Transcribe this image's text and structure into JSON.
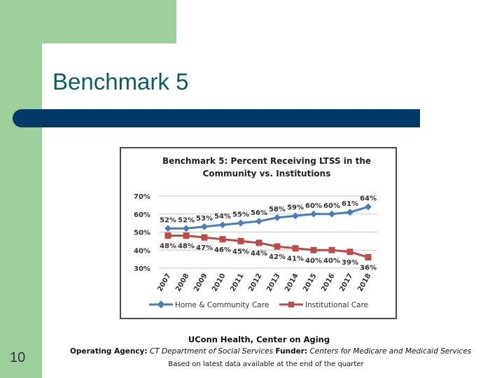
{
  "slide": {
    "title": "Benchmark 5",
    "number": "10"
  },
  "colors": {
    "green": "#9ccf9c",
    "title_bar": "#003a66",
    "home": "#4a7ebb",
    "inst": "#be4b48"
  },
  "chart_data": {
    "type": "line",
    "title_line1": "Benchmark 5:  Percent Receiving LTSS in the",
    "title_line2": "Community vs. Institutions",
    "categories": [
      "2007",
      "2008",
      "2009",
      "2010",
      "2011",
      "2012",
      "2013",
      "2014",
      "2015",
      "2016",
      "2017",
      "2018"
    ],
    "y_ticks": [
      "70%",
      "60%",
      "50%",
      "40%",
      "30%"
    ],
    "ylim": [
      30,
      70
    ],
    "series": [
      {
        "name": "Home & Community Care",
        "marker": "diamond",
        "values": [
          52,
          52,
          53,
          54,
          55,
          56,
          58,
          59,
          60,
          60,
          61,
          64
        ],
        "labels": [
          "52%",
          "52%",
          "53%",
          "54%",
          "55%",
          "56%",
          "58%",
          "59%",
          "60%",
          "60%",
          "61%",
          "64%"
        ]
      },
      {
        "name": "Institutional Care",
        "marker": "square",
        "values": [
          48,
          48,
          47,
          46,
          45,
          44,
          42,
          41,
          40,
          40,
          39,
          36
        ],
        "labels": [
          "48%",
          "48%",
          "47%",
          "46%",
          "45%",
          "44%",
          "42%",
          "41%",
          "40%",
          "40%",
          "39%",
          "36%"
        ]
      }
    ]
  },
  "caption": {
    "line1": "UConn Health, Center on Aging",
    "agency_label": "Operating Agency:",
    "agency": "CT Department of Social Services",
    "funder_label": "Funder:",
    "funder": "Centers for Medicare and Medicaid Services",
    "line3": "Based on latest data available at the end of the quarter"
  }
}
